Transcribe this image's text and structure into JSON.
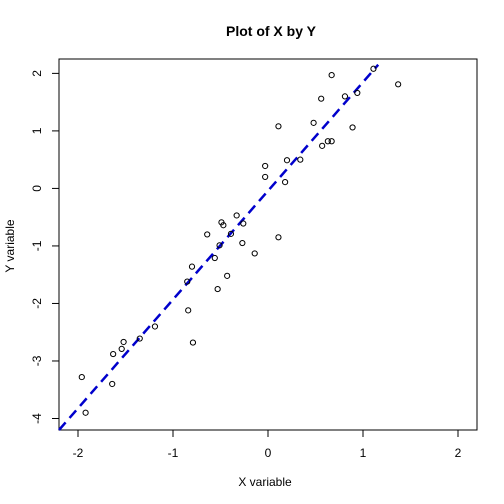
{
  "chart_data": {
    "type": "scatter",
    "title": "Plot of X by Y",
    "xlabel": "X variable",
    "ylabel": "Y variable",
    "xlim": [
      -2.2,
      2.2
    ],
    "ylim": [
      -4.2,
      2.25
    ],
    "x_ticks": [
      -2,
      -1,
      0,
      1,
      2
    ],
    "x_tick_labels": [
      "-2",
      "-1",
      "0",
      "1",
      "2"
    ],
    "y_ticks": [
      -4,
      -3,
      -2,
      -1,
      0,
      1,
      2
    ],
    "y_tick_labels": [
      "-4",
      "-3",
      "-2",
      "-1",
      "0",
      "1",
      "2"
    ],
    "grid": false,
    "points": {
      "x": [
        -1.92,
        -1.96,
        -1.64,
        -1.63,
        -1.54,
        -1.52,
        -1.35,
        -1.19,
        -0.85,
        -0.84,
        -0.8,
        -0.79,
        -0.64,
        -0.56,
        -0.53,
        -0.51,
        -0.49,
        -0.47,
        -0.43,
        -0.39,
        -0.33,
        -0.27,
        -0.26,
        -0.14,
        0.11,
        0.11,
        -0.03,
        -0.03,
        0.18,
        0.2,
        0.34,
        0.48,
        0.56,
        0.57,
        0.63,
        0.67,
        0.67,
        0.81,
        0.89,
        0.94,
        1.11,
        1.37
      ],
      "y": [
        -3.9,
        -3.28,
        -3.4,
        -2.88,
        -2.79,
        -2.67,
        -2.61,
        -2.4,
        -1.62,
        -2.12,
        -1.36,
        -2.68,
        -0.8,
        -1.21,
        -1.75,
        -0.99,
        -0.59,
        -0.64,
        -1.52,
        -0.79,
        -0.47,
        -0.95,
        -0.61,
        -1.13,
        -0.85,
        1.08,
        0.39,
        0.2,
        0.11,
        0.49,
        0.5,
        1.14,
        1.56,
        0.74,
        0.82,
        0.82,
        1.97,
        1.6,
        1.06,
        1.66,
        2.08,
        1.81
      ]
    },
    "fit_line": {
      "style": "dashed",
      "color": "#0000cc",
      "x": [
        -2.2,
        1.16
      ],
      "y": [
        -4.2,
        2.15
      ]
    },
    "point_color": "#000000"
  }
}
